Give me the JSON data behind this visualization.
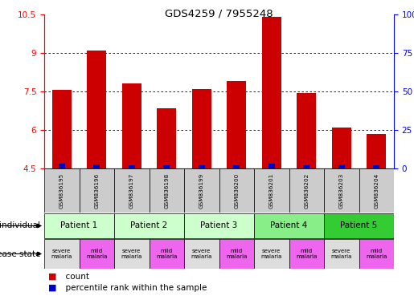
{
  "title": "GDS4259 / 7955248",
  "samples": [
    "GSM836195",
    "GSM836196",
    "GSM836197",
    "GSM836198",
    "GSM836199",
    "GSM836200",
    "GSM836201",
    "GSM836202",
    "GSM836203",
    "GSM836204"
  ],
  "count_values": [
    7.55,
    9.1,
    7.8,
    6.85,
    7.6,
    7.9,
    10.4,
    7.45,
    6.1,
    5.85
  ],
  "percentile_bar_heights": [
    0.18,
    0.16,
    0.13,
    0.14,
    0.12,
    0.14,
    0.2,
    0.14,
    0.15,
    0.12
  ],
  "bar_bottom": 4.5,
  "ylim": [
    4.5,
    10.5
  ],
  "yticks_left": [
    4.5,
    6.0,
    7.5,
    9.0,
    10.5
  ],
  "yticks_right": [
    0,
    25,
    50,
    75,
    100
  ],
  "patients": [
    {
      "label": "Patient 1",
      "cols": [
        0,
        1
      ],
      "color": "#ccffcc"
    },
    {
      "label": "Patient 2",
      "cols": [
        2,
        3
      ],
      "color": "#ccffcc"
    },
    {
      "label": "Patient 3",
      "cols": [
        4,
        5
      ],
      "color": "#ccffcc"
    },
    {
      "label": "Patient 4",
      "cols": [
        6,
        7
      ],
      "color": "#88ee88"
    },
    {
      "label": "Patient 5",
      "cols": [
        8,
        9
      ],
      "color": "#33cc33"
    }
  ],
  "disease_states": [
    {
      "label": "severe\nmalaria",
      "col": 0,
      "color": "#dddddd"
    },
    {
      "label": "mild\nmalaria",
      "col": 1,
      "color": "#ee66ee"
    },
    {
      "label": "severe\nmalaria",
      "col": 2,
      "color": "#dddddd"
    },
    {
      "label": "mild\nmalaria",
      "col": 3,
      "color": "#ee66ee"
    },
    {
      "label": "severe\nmalaria",
      "col": 4,
      "color": "#dddddd"
    },
    {
      "label": "mild\nmalaria",
      "col": 5,
      "color": "#ee66ee"
    },
    {
      "label": "severe\nmalaria",
      "col": 6,
      "color": "#dddddd"
    },
    {
      "label": "mild\nmalaria",
      "col": 7,
      "color": "#ee66ee"
    },
    {
      "label": "severe\nmalaria",
      "col": 8,
      "color": "#dddddd"
    },
    {
      "label": "mild\nmalaria",
      "col": 9,
      "color": "#ee66ee"
    }
  ],
  "count_color": "#cc0000",
  "percentile_color": "#0000cc",
  "bar_width": 0.55,
  "row_label_individual": "individual",
  "row_label_disease": "disease state",
  "legend_count": "count",
  "legend_percentile": "percentile rank within the sample",
  "background_color": "#ffffff",
  "sample_box_color": "#cccccc"
}
